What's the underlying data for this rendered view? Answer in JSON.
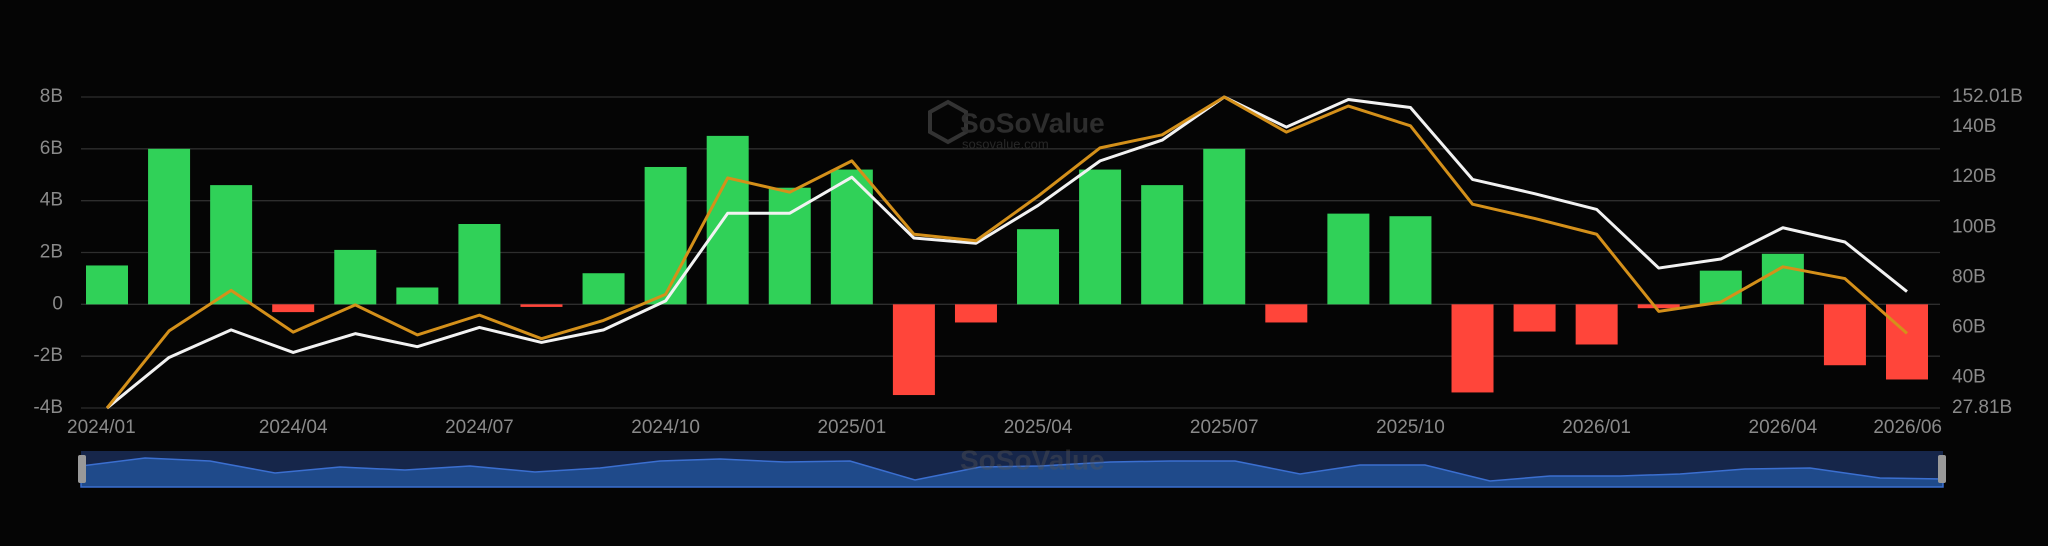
{
  "chart_data": {
    "type": "bar-line",
    "watermark": "SoSoValue",
    "watermark_url": "sosovalue.com",
    "categories": [
      "2024/01",
      null,
      null,
      "2024/04",
      null,
      null,
      "2024/07",
      null,
      null,
      "2024/10",
      null,
      null,
      "2025/01",
      null,
      null,
      "2025/04",
      null,
      null,
      "2025/07",
      null,
      null,
      "2025/10",
      null,
      null,
      "2026/01",
      null,
      null,
      "2026/04",
      null,
      "2026/06"
    ],
    "bars": {
      "positive_color": "#30d158",
      "negative_color": "#ff453a",
      "values": [
        1.5,
        6.0,
        4.6,
        -0.3,
        2.1,
        0.65,
        3.1,
        -0.1,
        1.2,
        5.3,
        6.5,
        4.5,
        5.2,
        -3.5,
        -0.7,
        2.9,
        5.2,
        4.6,
        6.0,
        -0.7,
        3.5,
        3.4,
        -3.4,
        -1.05,
        -1.55,
        -0.15,
        1.3,
        1.95,
        -2.35,
        -2.9
      ]
    },
    "series": [
      {
        "color": "#f2f2f2",
        "axis": "y2",
        "values": [
          27.8,
          48,
          59,
          50,
          57.5,
          52.3,
          60,
          54,
          59,
          70.6,
          105.6,
          105.6,
          120,
          95.7,
          93.6,
          108.7,
          126.5,
          134.8,
          152,
          140,
          151,
          147.8,
          119.1,
          113.4,
          107.1,
          83.7,
          87.3,
          99.8,
          94.1,
          74.3
        ]
      },
      {
        "color": "#d4901a",
        "axis": "y2",
        "values": [
          27.8,
          58.6,
          74.8,
          58.1,
          69,
          57,
          64.9,
          55.5,
          62.8,
          73.2,
          119.7,
          114,
          126.5,
          97.2,
          94.6,
          112.4,
          131.7,
          136.9,
          152,
          138,
          148.4,
          140.5,
          109.2,
          103.5,
          97.2,
          66.4,
          70.1,
          84.2,
          79.5,
          57.6
        ]
      }
    ],
    "ylim": [
      -4,
      8
    ],
    "yticks": [
      {
        "value": -4,
        "label": "-4B"
      },
      {
        "value": -2,
        "label": "-2B"
      },
      {
        "value": 0,
        "label": "0"
      },
      {
        "value": 2,
        "label": "2B"
      },
      {
        "value": 4,
        "label": "4B"
      },
      {
        "value": 6,
        "label": "6B"
      },
      {
        "value": 8,
        "label": "8B"
      }
    ],
    "y2lim": [
      27.81,
      152.01
    ],
    "y2ticks": [
      {
        "value": 27.81,
        "label": "27.81B"
      },
      {
        "value": 40,
        "label": "40B"
      },
      {
        "value": 60,
        "label": "60B"
      },
      {
        "value": 80,
        "label": "80B"
      },
      {
        "value": 100,
        "label": "100B"
      },
      {
        "value": 120,
        "label": "120B"
      },
      {
        "value": 140,
        "label": "140B"
      },
      {
        "value": 152.01,
        "label": "152.01B"
      }
    ],
    "grid": true
  }
}
